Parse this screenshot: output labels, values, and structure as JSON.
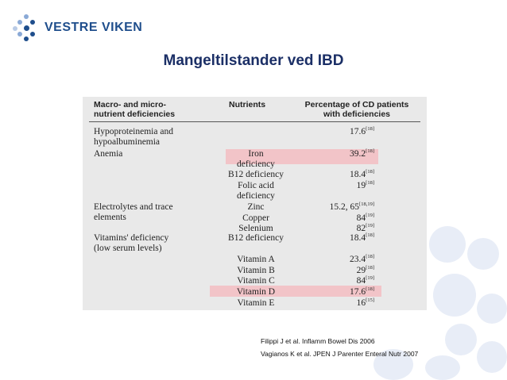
{
  "brand": {
    "name": "VESTRE VIKEN",
    "color": "#1f4e8c"
  },
  "slide": {
    "title": "Mangeltilstander ved IBD"
  },
  "table": {
    "headers": [
      "Macro- and micro-\nnutrient deficiencies",
      "Nutrients",
      "Percentage of CD patients\nwith deficiencies"
    ],
    "rows": [
      {
        "category": "Hypoproteinemia and\nhypoalbuminemia",
        "nutrient": "",
        "pct": "17.6",
        "ref": "[18]"
      },
      {
        "category": "Anemia",
        "nutrient": "Iron\ndeficiency",
        "pct": "39.2",
        "ref": "[18]",
        "highlight": true
      },
      {
        "category": "",
        "nutrient": "B12 deficiency",
        "pct": "18.4",
        "ref": "[18]"
      },
      {
        "category": "",
        "nutrient": "Folic acid\ndeficiency",
        "pct": "19",
        "ref": "[18]"
      },
      {
        "category": "Electrolytes and trace\nelements",
        "nutrient": "Zinc",
        "pct": "15.2, 65",
        "ref": "[18,19]"
      },
      {
        "category": "",
        "nutrient": "Copper",
        "pct": "84",
        "ref": "[19]"
      },
      {
        "category": "",
        "nutrient": "Selenium",
        "pct": "82",
        "ref": "[19]"
      },
      {
        "category": "Vitamins' deficiency\n(low serum levels)",
        "nutrient": "B12 deficiency",
        "pct": "18.4",
        "ref": "[18]"
      },
      {
        "category": "",
        "nutrient": "Vitamin A",
        "pct": "23.4",
        "ref": "[18]"
      },
      {
        "category": "",
        "nutrient": "Vitamin B",
        "pct": "29",
        "ref": "[18]"
      },
      {
        "category": "",
        "nutrient": "Vitamin C",
        "pct": "84",
        "ref": "[19]"
      },
      {
        "category": "",
        "nutrient": "Vitamin D",
        "pct": "17.6",
        "ref": "[18]",
        "highlight": true
      },
      {
        "category": "",
        "nutrient": "Vitamin E",
        "pct": "16",
        "ref": "[15]"
      }
    ],
    "highlight_color": "#f2c4c8"
  },
  "references": [
    "Filippi J et al. Inflamm Bowel Dis 2006",
    "Vagianos K et al. JPEN J Parenter Enteral Nutr 2007"
  ]
}
